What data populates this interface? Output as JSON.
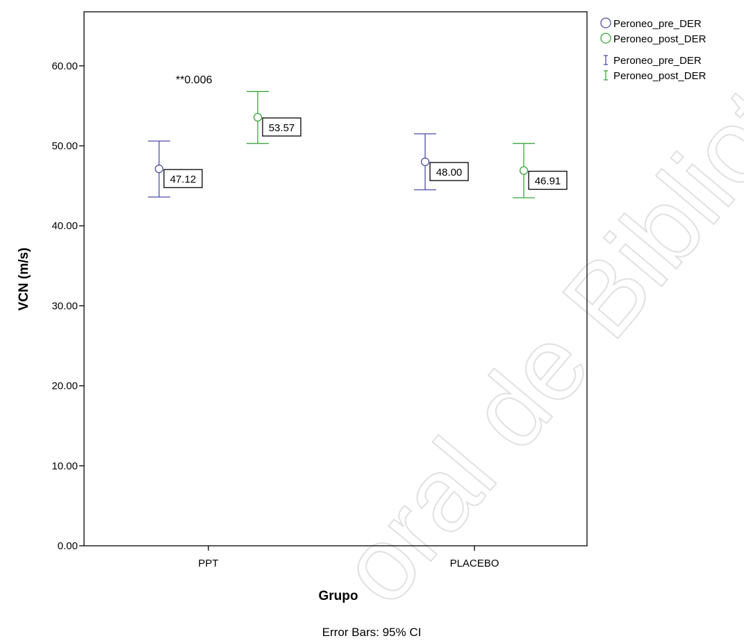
{
  "chart_data": {
    "type": "errorbar",
    "xlabel": "Grupo",
    "ylabel": "VCN (m/s)",
    "ylim": [
      0,
      66
    ],
    "yticks": [
      0,
      10,
      20,
      30,
      40,
      50,
      60
    ],
    "ytick_labels": [
      "0.00",
      "10.00",
      "20.00",
      "30.00",
      "40.00",
      "50.00",
      "60.00"
    ],
    "categories": [
      "PPT",
      "PLACEBO"
    ],
    "series": [
      {
        "name": "Peroneo_pre_DER",
        "color": "#4b4fa8",
        "means": [
          47.12,
          48.0
        ],
        "ci_low": [
          43.6,
          44.5
        ],
        "ci_high": [
          50.6,
          51.5
        ],
        "labels": [
          "47.12",
          "48.00"
        ]
      },
      {
        "name": "Peroneo_post_DER",
        "color": "#3aa63a",
        "means": [
          53.57,
          46.91
        ],
        "ci_low": [
          50.3,
          43.5
        ],
        "ci_high": [
          56.8,
          50.3
        ],
        "labels": [
          "53.57",
          "46.91"
        ]
      }
    ],
    "annotation": "**0.006",
    "footnote": "Error Bars: 95% CI",
    "legend": {
      "position": "top-right",
      "marker_entries": [
        "Peroneo_pre_DER",
        "Peroneo_post_DER"
      ],
      "errorbar_entries": [
        "Peroneo_pre_DER",
        "Peroneo_post_DER"
      ]
    },
    "grid": false
  },
  "watermark_text": "oral de Bibliotecas"
}
